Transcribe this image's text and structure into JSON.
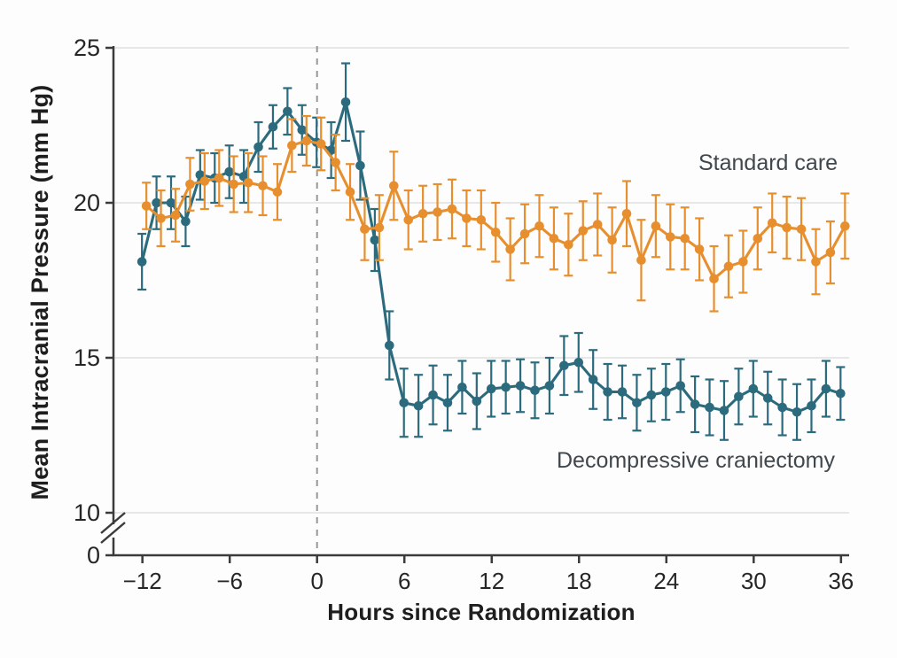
{
  "figure": {
    "background": "#fdfdfd"
  },
  "colors": {
    "standard_care": "#e78f2e",
    "craniectomy": "#2b6b7d",
    "grid_line": "#e0e0e0",
    "axis_line": "#3b3b3b",
    "tick_text": "#262626",
    "dashed_line": "#979797",
    "legend_text": "#40474d"
  },
  "chart_data": {
    "type": "line",
    "title": "",
    "xlabel": "Hours since Randomization",
    "ylabel": "Mean Intracranial Pressure (mm Hg)",
    "x_ticks": [
      -12,
      -6,
      0,
      6,
      12,
      18,
      24,
      30,
      36
    ],
    "y_ticks": [
      25,
      20,
      15,
      10,
      0
    ],
    "y_axis_break_between": [
      0,
      10
    ],
    "ylim_display": [
      10,
      25
    ],
    "xlim": [
      -12,
      36
    ],
    "grid": "horizontal",
    "vline_x": 0,
    "error_bars": true,
    "legend_position": "inline-annotations",
    "x": [
      -12,
      -11,
      -10,
      -9,
      -8,
      -7,
      -6,
      -5,
      -4,
      -3,
      -2,
      -1,
      0,
      1,
      2,
      3,
      4,
      5,
      6,
      7,
      8,
      9,
      10,
      11,
      12,
      13,
      14,
      15,
      16,
      17,
      18,
      19,
      20,
      21,
      22,
      23,
      24,
      25,
      26,
      27,
      28,
      29,
      30,
      31,
      32,
      33,
      34,
      35,
      36
    ],
    "series": [
      {
        "name": "Decompressive craniectomy",
        "color": "#2b6b7d",
        "values": [
          18.1,
          20.0,
          20.0,
          19.4,
          20.9,
          20.8,
          21.0,
          20.85,
          21.8,
          22.45,
          22.95,
          22.35,
          21.95,
          21.7,
          23.25,
          21.2,
          18.8,
          15.4,
          13.55,
          13.45,
          13.8,
          13.55,
          14.05,
          13.6,
          14.0,
          14.05,
          14.1,
          13.95,
          14.1,
          14.75,
          14.85,
          14.3,
          13.9,
          13.9,
          13.55,
          13.8,
          13.9,
          14.1,
          13.5,
          13.4,
          13.3,
          13.75,
          14.0,
          13.7,
          13.4,
          13.25,
          13.45,
          14.0,
          13.85
        ],
        "errors": [
          0.9,
          0.85,
          0.85,
          0.8,
          0.8,
          0.8,
          0.85,
          0.85,
          0.8,
          0.7,
          0.75,
          0.8,
          0.8,
          0.9,
          1.25,
          1.1,
          1.0,
          1.1,
          1.1,
          1.0,
          0.95,
          0.9,
          0.85,
          0.9,
          0.9,
          0.85,
          0.85,
          0.9,
          0.9,
          0.95,
          0.95,
          0.95,
          0.9,
          0.85,
          0.9,
          0.85,
          0.9,
          0.85,
          0.9,
          0.9,
          0.95,
          0.9,
          0.9,
          0.85,
          0.9,
          0.9,
          0.85,
          0.9,
          0.85
        ]
      },
      {
        "name": "Standard care",
        "color": "#e78f2e",
        "values": [
          19.9,
          19.5,
          19.6,
          20.6,
          20.7,
          20.8,
          20.6,
          20.65,
          20.55,
          20.35,
          21.85,
          22.0,
          21.9,
          21.3,
          20.35,
          19.15,
          19.2,
          20.55,
          19.45,
          19.65,
          19.7,
          19.8,
          19.5,
          19.45,
          19.05,
          18.5,
          19.0,
          19.25,
          18.85,
          18.65,
          19.1,
          19.3,
          18.8,
          19.65,
          18.15,
          19.25,
          18.9,
          18.85,
          18.5,
          17.55,
          17.95,
          18.1,
          18.85,
          19.35,
          19.2,
          19.15,
          18.1,
          18.4,
          19.25
        ],
        "errors": [
          0.75,
          0.9,
          0.85,
          0.85,
          0.9,
          0.9,
          0.9,
          0.95,
          0.95,
          0.9,
          0.85,
          0.8,
          0.85,
          0.9,
          0.9,
          1.0,
          1.05,
          1.1,
          0.95,
          0.9,
          0.9,
          0.95,
          0.9,
          0.95,
          0.95,
          1.0,
          0.95,
          1.0,
          1.0,
          1.0,
          0.95,
          1.0,
          1.05,
          1.05,
          1.3,
          1.0,
          1.05,
          1.0,
          1.0,
          1.05,
          1.0,
          1.0,
          1.0,
          0.95,
          1.0,
          1.0,
          1.05,
          1.0,
          1.05
        ]
      }
    ],
    "annotations": [
      {
        "text": "Standard care",
        "series": "Standard care"
      },
      {
        "text": "Decompressive craniectomy",
        "series": "Decompressive craniectomy"
      }
    ]
  }
}
